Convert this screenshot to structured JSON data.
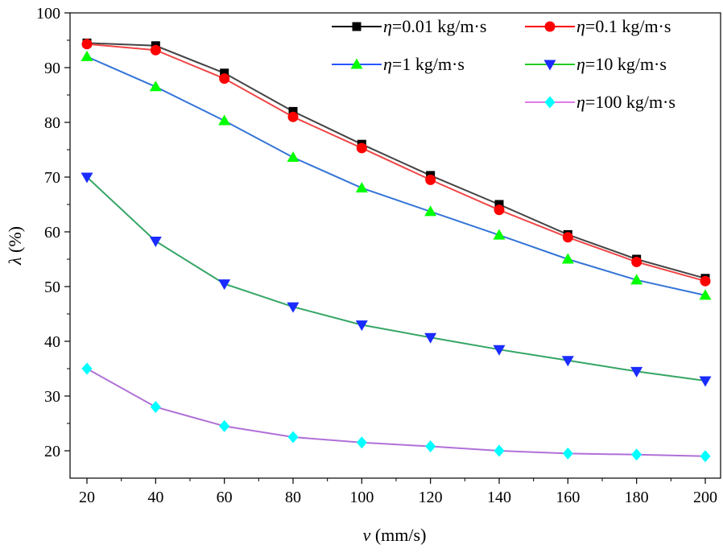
{
  "chart_data": {
    "type": "line",
    "title": "",
    "xlabel_symbol": "v",
    "xlabel_unit": " (mm/s)",
    "ylabel_symbol": "λ",
    "ylabel_unit": " (%)",
    "xlim": [
      15,
      205
    ],
    "ylim": [
      15,
      100
    ],
    "xticks": [
      20,
      40,
      60,
      80,
      100,
      120,
      140,
      160,
      180,
      200
    ],
    "yticks": [
      20,
      30,
      40,
      50,
      60,
      70,
      80,
      90,
      100
    ],
    "grid": false,
    "legend_placement": "top-right",
    "x": [
      20,
      40,
      60,
      80,
      100,
      120,
      140,
      160,
      180,
      200
    ],
    "series": [
      {
        "name": "η=0.01 kg/m·s",
        "symbol": "η",
        "label": "=0.01 kg/m·s",
        "marker": "square",
        "line_color": "#444444",
        "legend_line_color": "#000000",
        "marker_color": "#000000",
        "values": [
          94.5,
          94.0,
          89.0,
          82.0,
          76.0,
          70.3,
          65.0,
          59.5,
          55.0,
          51.5
        ]
      },
      {
        "name": "η=0.1 kg/m·s",
        "symbol": "η",
        "label": "=0.1 kg/m·s",
        "marker": "circle",
        "line_color": "#f04545",
        "legend_line_color": "#ff0000",
        "marker_color": "#ff0000",
        "values": [
          94.3,
          93.2,
          88.0,
          81.0,
          75.3,
          69.5,
          64.0,
          59.0,
          54.5,
          51.0
        ]
      },
      {
        "name": "η=1 kg/m·s",
        "symbol": "η",
        "label": "=1 kg/m·s",
        "marker": "triangle-up",
        "line_color": "#3575d8",
        "legend_line_color": "#2a55ff",
        "marker_color": "#00ff00",
        "values": [
          92.0,
          86.5,
          80.3,
          73.6,
          68.0,
          63.7,
          59.4,
          55.0,
          51.2,
          48.4
        ]
      },
      {
        "name": "η=10 kg/m·s",
        "symbol": "η",
        "label": "=10 kg/m·s",
        "marker": "triangle-down",
        "line_color": "#35a565",
        "legend_line_color": "#22cc22",
        "marker_color": "#1a2cff",
        "values": [
          70.0,
          58.3,
          50.5,
          46.3,
          43.0,
          40.7,
          38.5,
          36.5,
          34.5,
          32.8
        ]
      },
      {
        "name": "η=100 kg/m·s",
        "symbol": "η",
        "label": "=100 kg/m·s",
        "marker": "diamond",
        "line_color": "#b070d8",
        "legend_line_color": "#e07ae8",
        "marker_color": "#00ffff",
        "values": [
          35.0,
          28.0,
          24.5,
          22.5,
          21.5,
          20.8,
          20.0,
          19.5,
          19.3,
          19.0
        ]
      }
    ]
  }
}
